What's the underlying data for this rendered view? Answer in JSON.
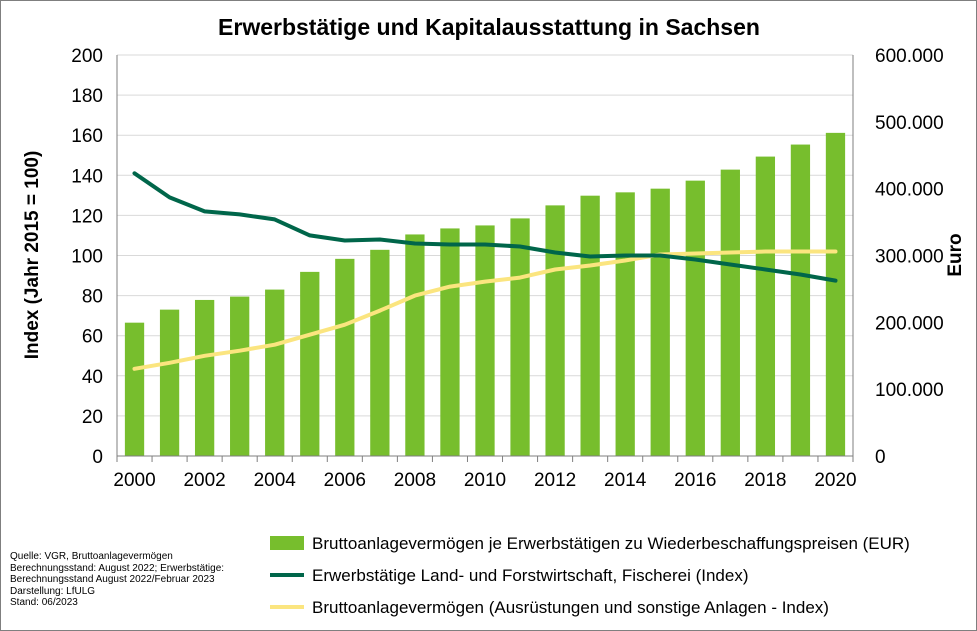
{
  "colors": {
    "bar": "#77be2d",
    "employment_line": "#00664a",
    "equipment_line": "#fbe57f",
    "gridline": "#d9d9d9",
    "axis": "#7f7f7f"
  },
  "source_notes": [
    "Quelle: VGR, Bruttoanlagevermögen",
    "Berechnungsstand: August 2022; Erwerbstätige:",
    "Berechnungsstand August 2022/Februar 2023",
    "Darstellung: LfULG",
    "Stand: 06/2023"
  ],
  "chart_data": {
    "type": "bar",
    "title": "Erwerbstätige und Kapitalausstattung in Sachsen",
    "ylabel": "Index (Jahr 2015 = 100)",
    "y2label": "Euro",
    "ylim": [
      0,
      200
    ],
    "y2lim": [
      0,
      600000
    ],
    "yticks": [
      "0",
      "20",
      "40",
      "60",
      "80",
      "100",
      "120",
      "140",
      "160",
      "180",
      "200"
    ],
    "y2ticks": [
      "0",
      "100.000",
      "200.000",
      "300.000",
      "400.000",
      "500.000",
      "600.000"
    ],
    "xticks": [
      "2000",
      "2002",
      "2004",
      "2006",
      "2008",
      "2010",
      "2012",
      "2014",
      "2016",
      "2018",
      "2020"
    ],
    "categories": [
      2000,
      2001,
      2002,
      2003,
      2004,
      2005,
      2006,
      2007,
      2008,
      2009,
      2010,
      2011,
      2012,
      2013,
      2014,
      2015,
      2016,
      2017,
      2018,
      2019,
      2020
    ],
    "grid": "horizontal",
    "legend_position": "bottom-right",
    "series": [
      {
        "name": "Bruttoanlagevermögen je Erwerbstätigen zu Wiederbeschaffungspreisen (EUR)",
        "type": "bar",
        "axis": "right",
        "values": [
          199500,
          219000,
          233500,
          238500,
          249000,
          275500,
          295000,
          308500,
          331500,
          340500,
          345000,
          355500,
          375000,
          389500,
          394500,
          400000,
          412000,
          428500,
          448000,
          466000,
          483500
        ]
      },
      {
        "name": "Erwerbstätige Land- und Forstwirtschaft, Fischerei (Index)",
        "type": "line",
        "axis": "left",
        "values": [
          141,
          129,
          122,
          120.5,
          118,
          110,
          107.5,
          108,
          106,
          105.5,
          105.5,
          104.5,
          101.5,
          99.5,
          100,
          100,
          98,
          95.5,
          93,
          90.5,
          87.5
        ]
      },
      {
        "name": "Bruttoanlagevermögen (Ausrüstungen und sonstige Anlagen - Index)",
        "type": "line",
        "axis": "left",
        "values": [
          43.5,
          46.5,
          50,
          52.5,
          55.5,
          60.5,
          65.5,
          72.5,
          80,
          84.5,
          87,
          89,
          93,
          95,
          97.5,
          100.5,
          101,
          101.5,
          102,
          102,
          102
        ]
      }
    ]
  }
}
